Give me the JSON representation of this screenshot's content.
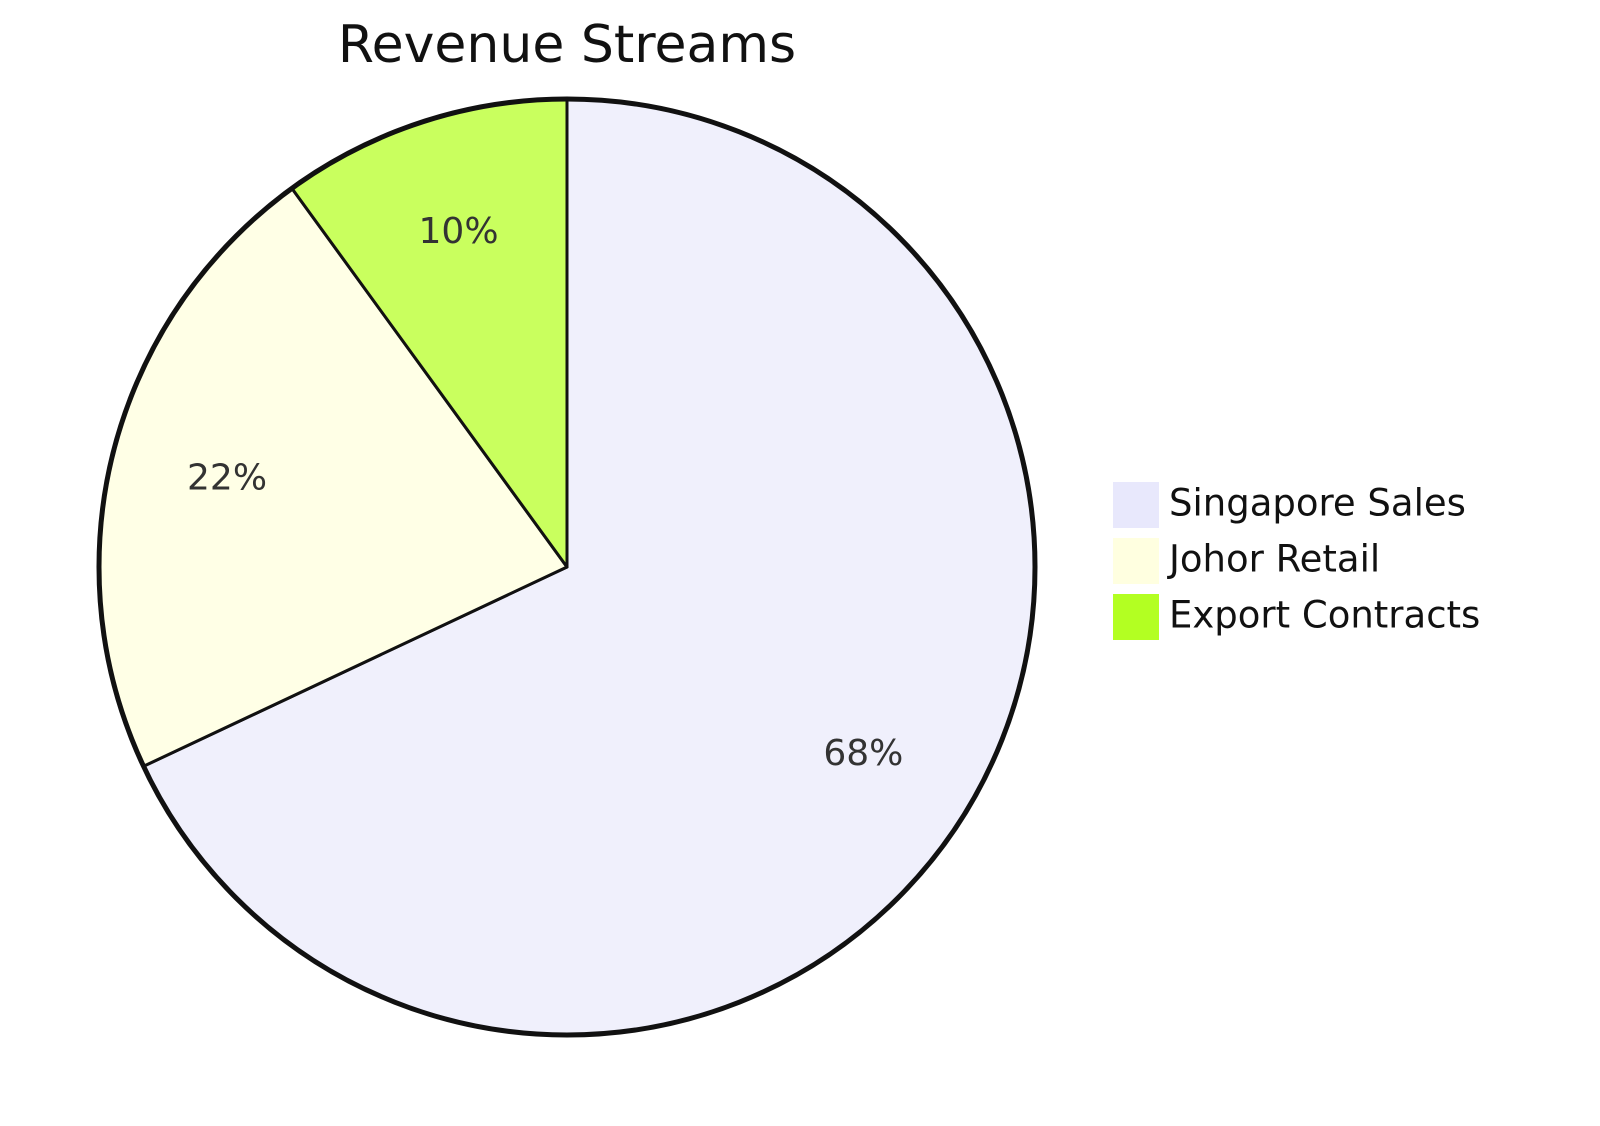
{
  "chart_data": {
    "type": "pie",
    "title": "Revenue Streams",
    "slices": [
      {
        "label": "Singapore Sales",
        "value": 68,
        "value_label": "68%",
        "color": "#f0f0fc"
      },
      {
        "label": "Johor Retail",
        "value": 22,
        "value_label": "22%",
        "color": "#ffffe6"
      },
      {
        "label": "Export Contracts",
        "value": 10,
        "value_label": "10%",
        "color": "#c9ff5e"
      }
    ],
    "legend_colors": [
      "#e8e8fc",
      "#ffffe0",
      "#b3ff22"
    ],
    "legend_position": "right",
    "stroke_color": "#111111"
  }
}
